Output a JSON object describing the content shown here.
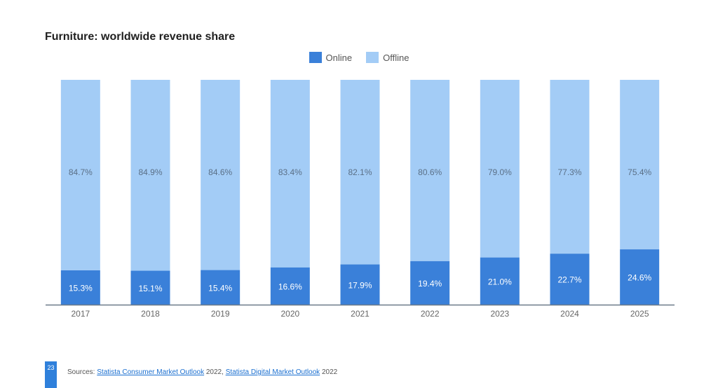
{
  "title": "Furniture: worldwide revenue share",
  "legend": [
    {
      "label": "Online",
      "color": "#3a80d9"
    },
    {
      "label": "Offline",
      "color": "#a3ccf6"
    }
  ],
  "footer": {
    "page_number": "23",
    "sources_prefix": "Sources: ",
    "source1": "Statista Consumer Market Outlook",
    "year1": " 2022, ",
    "source2": "Statista Digital Market Outlook",
    "year2": " 2022"
  },
  "chart_data": {
    "type": "bar",
    "stacked": true,
    "categories": [
      "2017",
      "2018",
      "2019",
      "2020",
      "2021",
      "2022",
      "2023",
      "2024",
      "2025"
    ],
    "series": [
      {
        "name": "Online",
        "values": [
          15.3,
          15.1,
          15.4,
          16.6,
          17.9,
          19.4,
          21.0,
          22.7,
          24.6
        ],
        "labels": [
          "15.3%",
          "15.1%",
          "15.4%",
          "16.6%",
          "17.9%",
          "19.4%",
          "21.0%",
          "22.7%",
          "24.6%"
        ]
      },
      {
        "name": "Offline",
        "values": [
          84.7,
          84.9,
          84.6,
          83.4,
          82.1,
          80.6,
          79.0,
          77.3,
          75.4
        ],
        "labels": [
          "84.7%",
          "84.9%",
          "84.6%",
          "83.4%",
          "82.1%",
          "80.6%",
          "79.0%",
          "77.3%",
          "75.4%"
        ]
      }
    ],
    "ylim": [
      0,
      100
    ],
    "legend_position": "top-center",
    "grid": false
  }
}
